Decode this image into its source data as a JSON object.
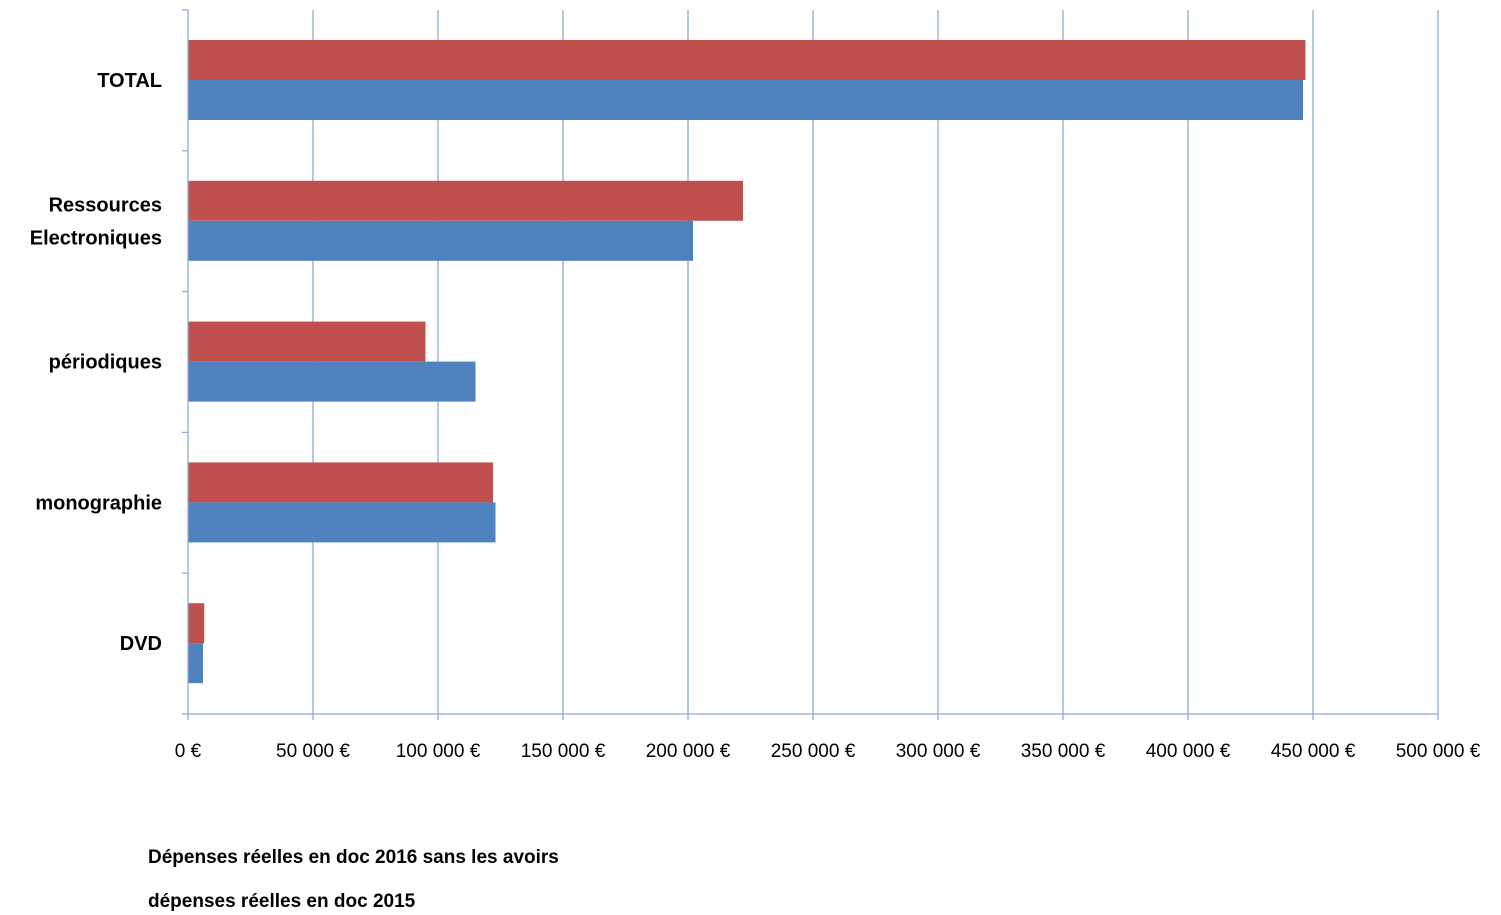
{
  "chart_data": {
    "type": "bar",
    "orientation": "horizontal",
    "categories": [
      "TOTAL",
      "Ressources Electroniques",
      "périodiques",
      "monographie",
      "DVD"
    ],
    "category_lines": [
      [
        "TOTAL"
      ],
      [
        "Ressources",
        "Electroniques"
      ],
      [
        "périodiques"
      ],
      [
        "monographie"
      ],
      [
        "DVD"
      ]
    ],
    "series": [
      {
        "name": "Dépenses réelles en doc 2016 sans les avoirs",
        "color": "#c0504d",
        "values": [
          447000,
          222000,
          95000,
          122000,
          6500
        ]
      },
      {
        "name": "dépenses réelles en doc 2015",
        "color": "#4f81bd",
        "values": [
          446000,
          202000,
          115000,
          123000,
          6000
        ]
      }
    ],
    "xlim": [
      0,
      500000
    ],
    "xticks": [
      0,
      50000,
      100000,
      150000,
      200000,
      250000,
      300000,
      350000,
      400000,
      450000,
      500000
    ],
    "xtick_labels": [
      "0 €",
      "50 000 €",
      "100 000 €",
      "150 000 €",
      "200 000 €",
      "250 000 €",
      "300 000 €",
      "350 000 €",
      "400 000 €",
      "450 000 €",
      "500 000 €"
    ],
    "grid": "vertical",
    "grid_color": "#8eaad6",
    "legend_position": "bottom-left"
  }
}
